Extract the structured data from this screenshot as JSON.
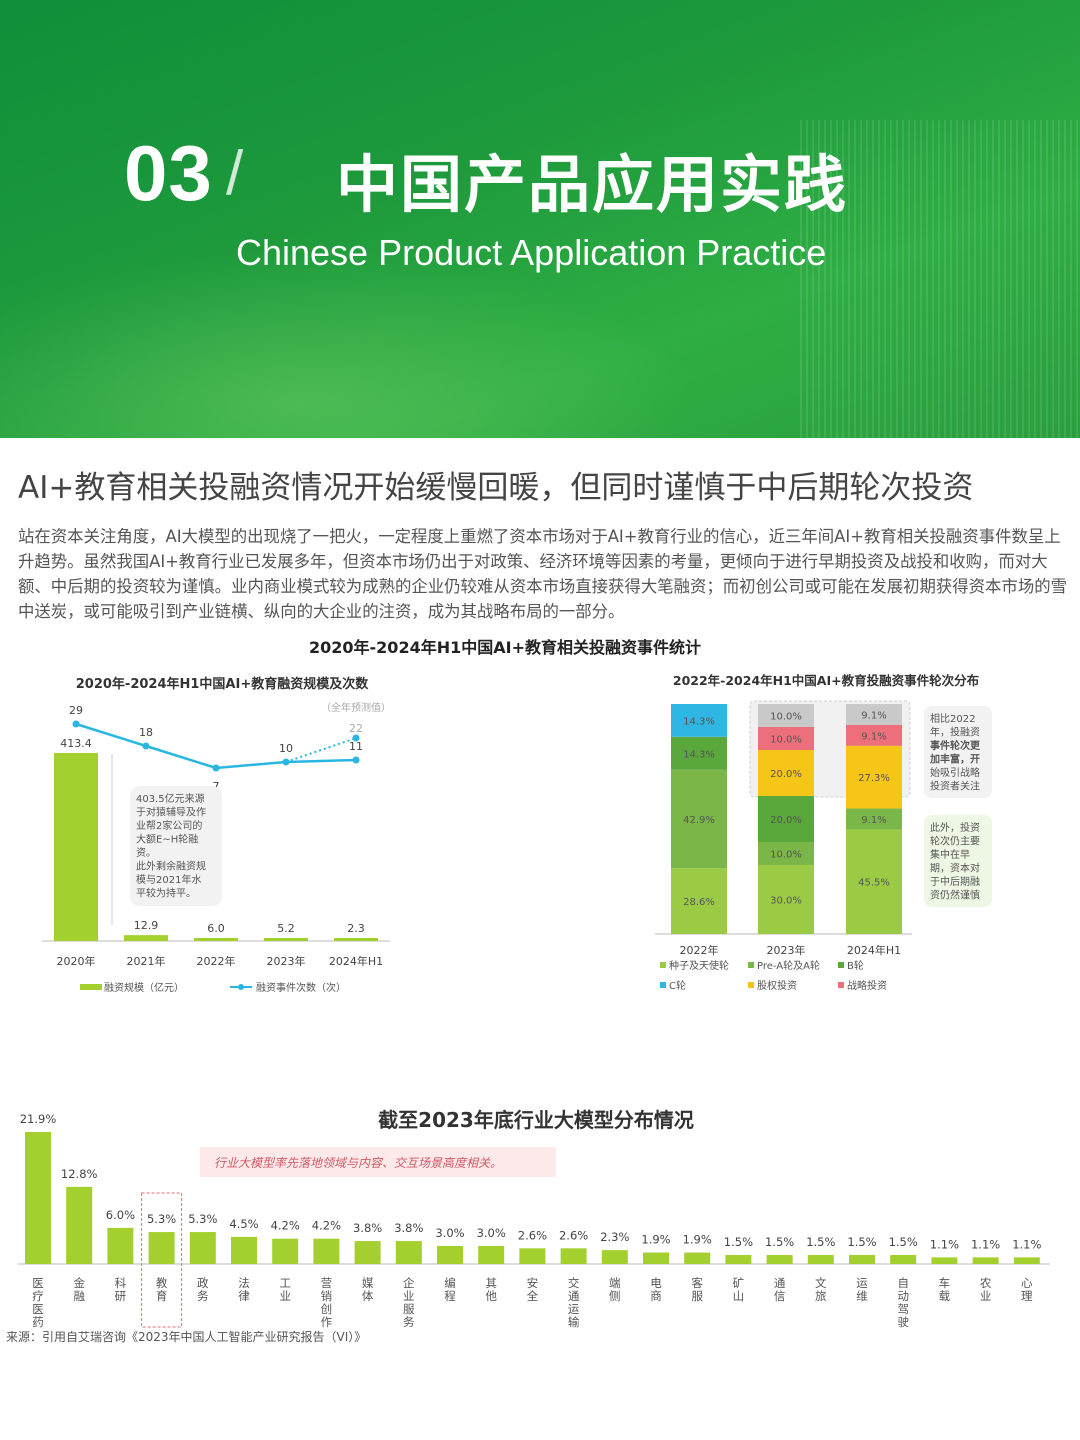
{
  "banner": {
    "section_number": "03",
    "title": "中国产品应用实践",
    "subtitle": "Chinese Product Application Practice"
  },
  "headline": "AI+教育相关投融资情况开始缓慢回暖，但同时谨慎于中后期轮次投资",
  "paragraph": "站在资本关注角度，AI大模型的出现烧了一把火，一定程度上重燃了资本市场对于AI+教育行业的信心，近三年间AI+教育相关投融资事件数呈上升趋势。虽然我国AI+教育行业已发展多年，但资本市场仍出于对政策、经济环境等因素的考量，更倾向于进行早期投资及战投和收购，而对大额、中后期的投资较为谨慎。业内商业模式较为成熟的企业仍较难从资本市场直接获得大笔融资；而初创公司或可能在发展初期获得资本市场的雪中送炭，或可能吸引到产业链横、纵向的大企业的注资，成为其战略布局的一部分。",
  "stats_title": "2020年-2024年H1中国AI+教育相关投融资事件统计",
  "source": "来源：引用自艾瑞咨询《2023年中国人工智能产业研究报告（VI）》",
  "colors": {
    "bar_green": "#a3cf2f",
    "line_blue": "#29b6e0",
    "seed": "#9bcb45",
    "preA": "#7ab648",
    "B": "#5aa83c",
    "C": "#2fb6e3",
    "equity": "#f5c518",
    "strategic": "#ee6f7c"
  },
  "chart_data": [
    {
      "type": "bar",
      "title": "2020年-2024年H1中国AI+教育融资规模及次数",
      "categories": [
        "2020年",
        "2021年",
        "2022年",
        "2023年",
        "2024年H1"
      ],
      "series": [
        {
          "name": "融资规模（亿元）",
          "type": "bar",
          "values": [
            413.4,
            12.9,
            6.0,
            5.2,
            2.3
          ],
          "labels": [
            "413.4",
            "12.9",
            "6.0",
            "5.2",
            "2.3"
          ]
        },
        {
          "name": "融资事件次数（次）",
          "type": "line",
          "values": [
            29,
            18,
            7,
            10,
            11
          ],
          "labels": [
            "29",
            "18",
            "7",
            "10",
            "11"
          ]
        }
      ],
      "forecast": {
        "category": "2024年H1",
        "value": 22,
        "label": "22",
        "note": "（全年预测值）"
      },
      "annotation": [
        "403.5亿元来源",
        "于对猿辅导及作",
        "业帮2家公司的",
        "大额E~H轮融",
        "资。",
        "此外剩余融资规",
        "模与2021年水",
        "平较为持平。"
      ]
    },
    {
      "type": "bar",
      "stacked": true,
      "title": "2022年-2024年H1中国AI+教育投融资事件轮次分布",
      "categories": [
        "2022年",
        "2023年",
        "2024年H1"
      ],
      "series": [
        {
          "name": "种子及天使轮",
          "values": [
            28.6,
            30.0,
            45.5
          ],
          "labels": [
            "28.6%",
            "30.0%",
            "45.5%"
          ]
        },
        {
          "name": "Pre-A轮及A轮",
          "values": [
            42.9,
            10.0,
            9.1
          ],
          "labels": [
            "42.9%",
            "10.0%",
            "9.1%"
          ]
        },
        {
          "name": "B轮",
          "values": [
            14.3,
            20.0,
            0
          ],
          "labels": [
            "14.3%",
            "20.0%",
            ""
          ]
        },
        {
          "name": "C轮",
          "values": [
            14.3,
            0,
            0
          ],
          "labels": [
            "14.3%",
            "",
            ""
          ]
        },
        {
          "name": "股权投资",
          "values": [
            0,
            20.0,
            27.3
          ],
          "labels": [
            "",
            "20.0%",
            "27.3%"
          ]
        },
        {
          "name": "战略投资",
          "values": [
            0,
            10.0,
            9.1
          ],
          "labels": [
            "",
            "10.0%",
            "9.1%"
          ]
        },
        {
          "name": "",
          "values": [
            0,
            10.0,
            9.1
          ],
          "labels": [
            "",
            "10.0%",
            "9.1%"
          ]
        }
      ],
      "legend": [
        "种子及天使轮",
        "Pre-A轮及A轮",
        "B轮",
        "C轮",
        "股权投资",
        "战略投资"
      ],
      "notes": [
        [
          "相比2022",
          "年，投融资",
          "事件轮次更",
          "加丰富，开",
          "始吸引战略",
          "投资者关注"
        ],
        [
          "此外，投资",
          "轮次仍主要",
          "集中在早",
          "期，资本对",
          "于中后期融",
          "资仍然谨慎"
        ]
      ]
    },
    {
      "type": "bar",
      "title": "截至2023年底行业大模型分布情况",
      "annotation": "行业大模型率先落地领域与内容、交互场景高度相关。",
      "categories": [
        "医疗医药",
        "金融",
        "科研",
        "教育",
        "政务",
        "法律",
        "工业",
        "营销创作",
        "媒体",
        "企业服务",
        "编程",
        "其他",
        "安全",
        "交通运输",
        "端侧",
        "电商",
        "客服",
        "矿山",
        "通信",
        "文旅",
        "运维",
        "自动驾驶",
        "车载",
        "农业",
        "心理"
      ],
      "values": [
        21.9,
        12.8,
        6.0,
        5.3,
        5.3,
        4.5,
        4.2,
        4.2,
        3.8,
        3.8,
        3.0,
        3.0,
        2.6,
        2.6,
        2.3,
        1.9,
        1.9,
        1.5,
        1.5,
        1.5,
        1.5,
        1.5,
        1.1,
        1.1,
        1.1
      ],
      "labels": [
        "21.9%",
        "12.8%",
        "6.0%",
        "5.3%",
        "5.3%",
        "4.5%",
        "4.2%",
        "4.2%",
        "3.8%",
        "3.8%",
        "3.0%",
        "3.0%",
        "2.6%",
        "2.6%",
        "2.3%",
        "1.9%",
        "1.9%",
        "1.5%",
        "1.5%",
        "1.5%",
        "1.5%",
        "1.5%",
        "1.1%",
        "1.1%",
        "1.1%"
      ],
      "highlight": "教育"
    }
  ]
}
